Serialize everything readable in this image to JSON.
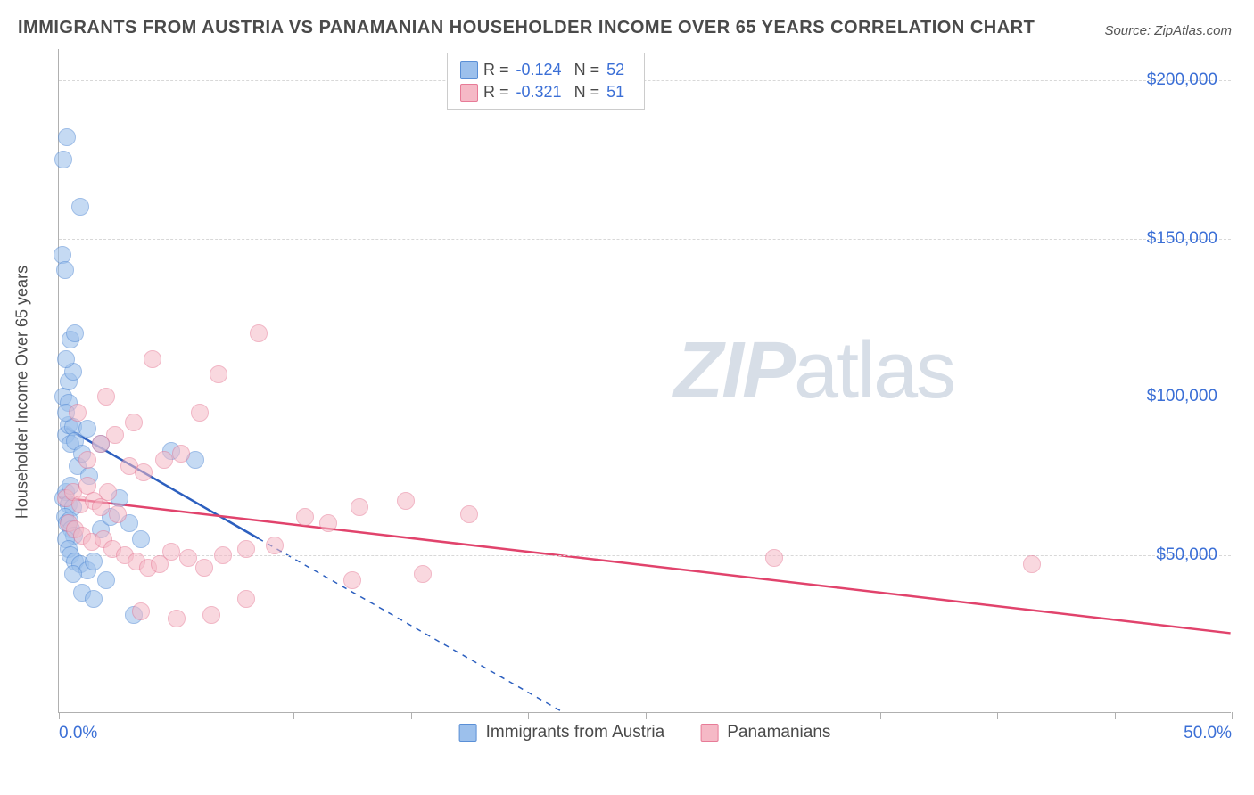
{
  "title": "IMMIGRANTS FROM AUSTRIA VS PANAMANIAN HOUSEHOLDER INCOME OVER 65 YEARS CORRELATION CHART",
  "source": "Source: ZipAtlas.com",
  "y_axis_label": "Householder Income Over 65 years",
  "watermark_zip": "ZIP",
  "watermark_atlas": "atlas",
  "chart": {
    "type": "scatter",
    "xlim": [
      0,
      50
    ],
    "ylim": [
      0,
      210000
    ],
    "y_ticks": [
      50000,
      100000,
      150000,
      200000
    ],
    "y_tick_labels": [
      "$50,000",
      "$100,000",
      "$150,000",
      "$200,000"
    ],
    "x_ticks": [
      0,
      5,
      10,
      15,
      20,
      25,
      30,
      35,
      40,
      45,
      50
    ],
    "x_tick_labels_shown": {
      "0": "0.0%",
      "50": "50.0%"
    },
    "grid_color": "#d8d8d8",
    "background_color": "#ffffff",
    "axis_color": "#b0b0b0",
    "tick_label_color": "#3b6fd6",
    "label_color": "#4a4a4a",
    "point_radius": 10,
    "series": [
      {
        "name": "Immigrants from Austria",
        "fill_color": "#9cc0ec",
        "stroke_color": "#5a8fd6",
        "fill_opacity": 0.58,
        "line_color": "#2c5fbf",
        "line_width": 2.5,
        "trend_solid": {
          "x1": 0.3,
          "y1": 90000,
          "x2": 8.5,
          "y2": 55000
        },
        "trend_dashed": {
          "x1": 8.5,
          "y1": 55000,
          "x2": 21.5,
          "y2": 0
        },
        "legend_R": "-0.124",
        "legend_N": "52",
        "points": [
          [
            0.3,
            88000
          ],
          [
            0.4,
            91000
          ],
          [
            0.5,
            85000
          ],
          [
            0.6,
            90500
          ],
          [
            0.7,
            86000
          ],
          [
            0.2,
            68000
          ],
          [
            0.3,
            70000
          ],
          [
            0.5,
            72000
          ],
          [
            0.4,
            66000
          ],
          [
            0.6,
            65000
          ],
          [
            0.25,
            62000
          ],
          [
            0.35,
            60000
          ],
          [
            0.45,
            61000
          ],
          [
            0.55,
            58000
          ],
          [
            0.65,
            56000
          ],
          [
            0.3,
            55000
          ],
          [
            0.4,
            52000
          ],
          [
            0.5,
            50000
          ],
          [
            0.7,
            48000
          ],
          [
            0.9,
            47000
          ],
          [
            1.2,
            45000
          ],
          [
            1.5,
            48000
          ],
          [
            1.8,
            58000
          ],
          [
            2.2,
            62000
          ],
          [
            2.6,
            68000
          ],
          [
            3.0,
            60000
          ],
          [
            3.5,
            55000
          ],
          [
            0.8,
            78000
          ],
          [
            1.0,
            82000
          ],
          [
            1.3,
            75000
          ],
          [
            0.2,
            100000
          ],
          [
            0.4,
            105000
          ],
          [
            0.6,
            108000
          ],
          [
            0.3,
            112000
          ],
          [
            0.5,
            118000
          ],
          [
            0.7,
            120000
          ],
          [
            0.4,
            98000
          ],
          [
            0.3,
            95000
          ],
          [
            1.2,
            90000
          ],
          [
            1.8,
            85000
          ],
          [
            0.15,
            145000
          ],
          [
            0.25,
            140000
          ],
          [
            0.2,
            175000
          ],
          [
            0.35,
            182000
          ],
          [
            0.9,
            160000
          ],
          [
            4.8,
            83000
          ],
          [
            5.8,
            80000
          ],
          [
            2.0,
            42000
          ],
          [
            1.0,
            38000
          ],
          [
            1.5,
            36000
          ],
          [
            3.2,
            31000
          ],
          [
            0.6,
            44000
          ]
        ]
      },
      {
        "name": "Panamanians",
        "fill_color": "#f5b9c6",
        "stroke_color": "#e77b97",
        "fill_opacity": 0.55,
        "line_color": "#e1436c",
        "line_width": 2.5,
        "trend_solid": {
          "x1": 0,
          "y1": 68000,
          "x2": 50,
          "y2": 25000
        },
        "trend_dashed": null,
        "legend_R": "-0.321",
        "legend_N": "51",
        "points": [
          [
            0.3,
            68000
          ],
          [
            0.6,
            70000
          ],
          [
            0.9,
            66000
          ],
          [
            1.2,
            72000
          ],
          [
            1.5,
            67000
          ],
          [
            1.8,
            65000
          ],
          [
            2.1,
            70000
          ],
          [
            2.5,
            63000
          ],
          [
            0.4,
            60000
          ],
          [
            0.7,
            58000
          ],
          [
            1.0,
            56000
          ],
          [
            1.4,
            54000
          ],
          [
            1.9,
            55000
          ],
          [
            2.3,
            52000
          ],
          [
            2.8,
            50000
          ],
          [
            3.3,
            48000
          ],
          [
            3.8,
            46000
          ],
          [
            4.3,
            47000
          ],
          [
            4.8,
            51000
          ],
          [
            5.5,
            49000
          ],
          [
            6.2,
            46000
          ],
          [
            7.0,
            50000
          ],
          [
            8.0,
            52000
          ],
          [
            9.2,
            53000
          ],
          [
            10.5,
            62000
          ],
          [
            11.5,
            60000
          ],
          [
            12.8,
            65000
          ],
          [
            14.8,
            67000
          ],
          [
            17.5,
            63000
          ],
          [
            30.5,
            49000
          ],
          [
            41.5,
            47000
          ],
          [
            1.2,
            80000
          ],
          [
            1.8,
            85000
          ],
          [
            2.4,
            88000
          ],
          [
            3.2,
            92000
          ],
          [
            3.0,
            78000
          ],
          [
            3.6,
            76000
          ],
          [
            4.5,
            80000
          ],
          [
            5.2,
            82000
          ],
          [
            6.0,
            95000
          ],
          [
            6.8,
            107000
          ],
          [
            8.5,
            120000
          ],
          [
            4.0,
            112000
          ],
          [
            2.0,
            100000
          ],
          [
            0.8,
            95000
          ],
          [
            3.5,
            32000
          ],
          [
            5.0,
            30000
          ],
          [
            6.5,
            31000
          ],
          [
            8.0,
            36000
          ],
          [
            12.5,
            42000
          ],
          [
            15.5,
            44000
          ]
        ]
      }
    ]
  },
  "legend_bottom": [
    {
      "label": "Immigrants from Austria",
      "fill": "#9cc0ec",
      "stroke": "#5a8fd6"
    },
    {
      "label": "Panamanians",
      "fill": "#f5b9c6",
      "stroke": "#e77b97"
    }
  ],
  "legend_top": {
    "R_label": "R =",
    "N_label": "N ="
  }
}
